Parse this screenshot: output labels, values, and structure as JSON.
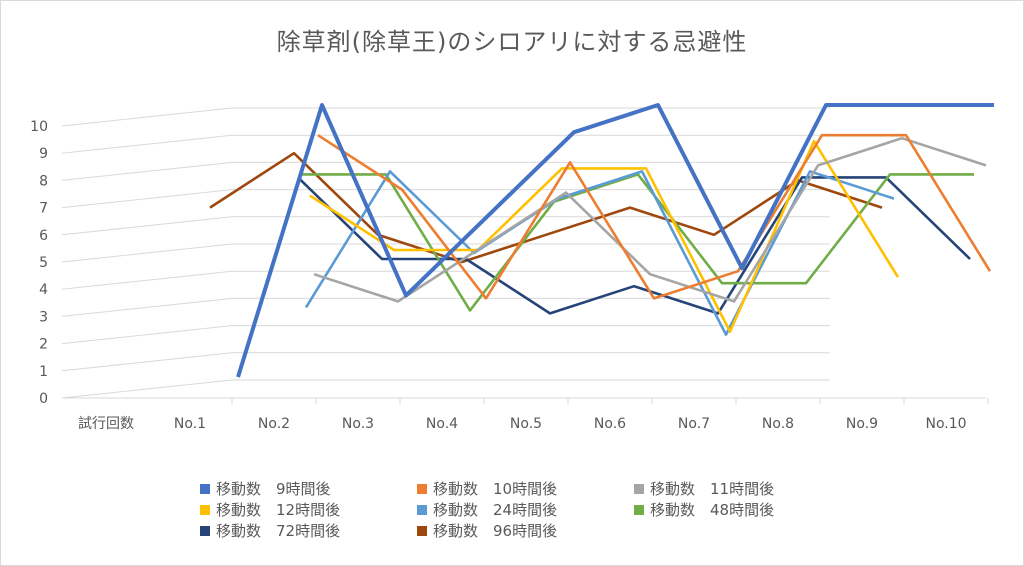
{
  "chart_data": {
    "type": "line",
    "title": "除草剤(除草王)のシロアリに対する忌避性",
    "x_axis_title": "試行回数",
    "categories": [
      "No.1",
      "No.2",
      "No.3",
      "No.4",
      "No.5",
      "No.6",
      "No.7",
      "No.8",
      "No.9",
      "No.10"
    ],
    "ylim": [
      0,
      10
    ],
    "y_ticks": [
      "0",
      "1",
      "2",
      "3",
      "4",
      "5",
      "6",
      "7",
      "8",
      "9",
      "10"
    ],
    "grid": true,
    "legend_position": "bottom",
    "series": [
      {
        "name": "移動数　9時間後",
        "color": "#4472c4",
        "values": [
          0,
          10,
          3,
          6,
          9,
          10,
          4,
          10,
          10,
          10
        ]
      },
      {
        "name": "移動数　10時間後",
        "color": "#ed7d31",
        "values": [
          null,
          9,
          7,
          3,
          8,
          3,
          4,
          9,
          9,
          4
        ]
      },
      {
        "name": "移動数　11時間後",
        "color": "#a5a5a5",
        "values": [
          null,
          4,
          3,
          5,
          7,
          4,
          3,
          8,
          9,
          8
        ]
      },
      {
        "name": "移動数　12時間後",
        "color": "#ffc000",
        "values": [
          null,
          7,
          5,
          5,
          8,
          8,
          2,
          9,
          4,
          null
        ]
      },
      {
        "name": "移動数　24時間後",
        "color": "#5b9bd5",
        "values": [
          null,
          3,
          8,
          5,
          7,
          8,
          2,
          8,
          7,
          null
        ]
      },
      {
        "name": "移動数　48時間後",
        "color": "#70ad47",
        "values": [
          null,
          8,
          8,
          3,
          7,
          8,
          4,
          4,
          8,
          8
        ]
      },
      {
        "name": "移動数　72時間後",
        "color": "#264478",
        "values": [
          null,
          8,
          5,
          5,
          3,
          4,
          3,
          8,
          8,
          5
        ]
      },
      {
        "name": "移動数　96時間後",
        "color": "#9e480e",
        "values": [
          7,
          9,
          6,
          5,
          6,
          7,
          6,
          8,
          7,
          null
        ]
      }
    ]
  }
}
